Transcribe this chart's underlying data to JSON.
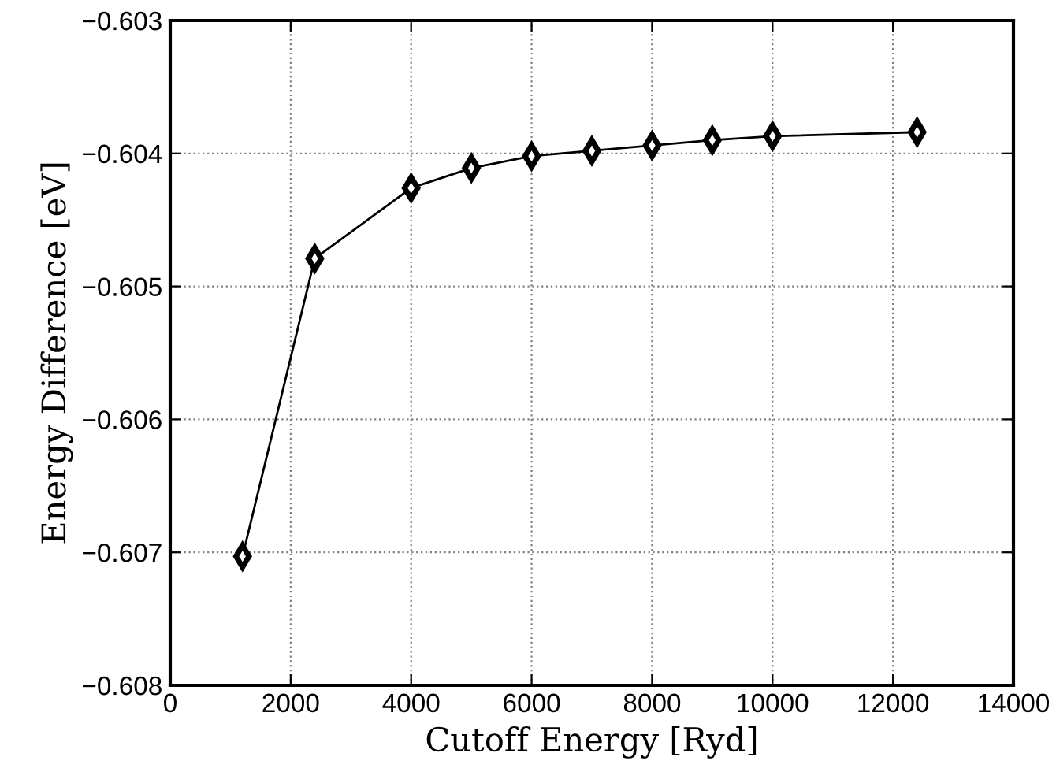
{
  "chart_data": {
    "type": "line",
    "xlabel": "Cutoff Energy [Ryd]",
    "ylabel": "Energy Difference [eV]",
    "x": [
      1200,
      2400,
      4000,
      5000,
      6000,
      7000,
      8000,
      9000,
      10000,
      12400
    ],
    "series": [
      {
        "color": "#000000",
        "values": [
          -0.60703,
          -0.60479,
          -0.60426,
          -0.60411,
          -0.60402,
          -0.60398,
          -0.60394,
          -0.6039,
          -0.60387,
          -0.60384
        ]
      }
    ],
    "xlim": [
      0,
      14000
    ],
    "xticks": [
      0,
      2000,
      4000,
      6000,
      8000,
      10000,
      12000,
      14000
    ],
    "ylim": [
      -0.608,
      -0.603
    ],
    "yticks": [
      {
        "value": -0.608,
        "label": "−0.608"
      },
      {
        "value": -0.607,
        "label": "−0.607"
      },
      {
        "value": -0.606,
        "label": "−0.606"
      },
      {
        "value": -0.605,
        "label": "−0.605"
      },
      {
        "value": -0.604,
        "label": "−0.604"
      },
      {
        "value": -0.603,
        "label": "−0.603"
      }
    ],
    "grid": true,
    "marker": "diamond",
    "line_style": "solid"
  }
}
